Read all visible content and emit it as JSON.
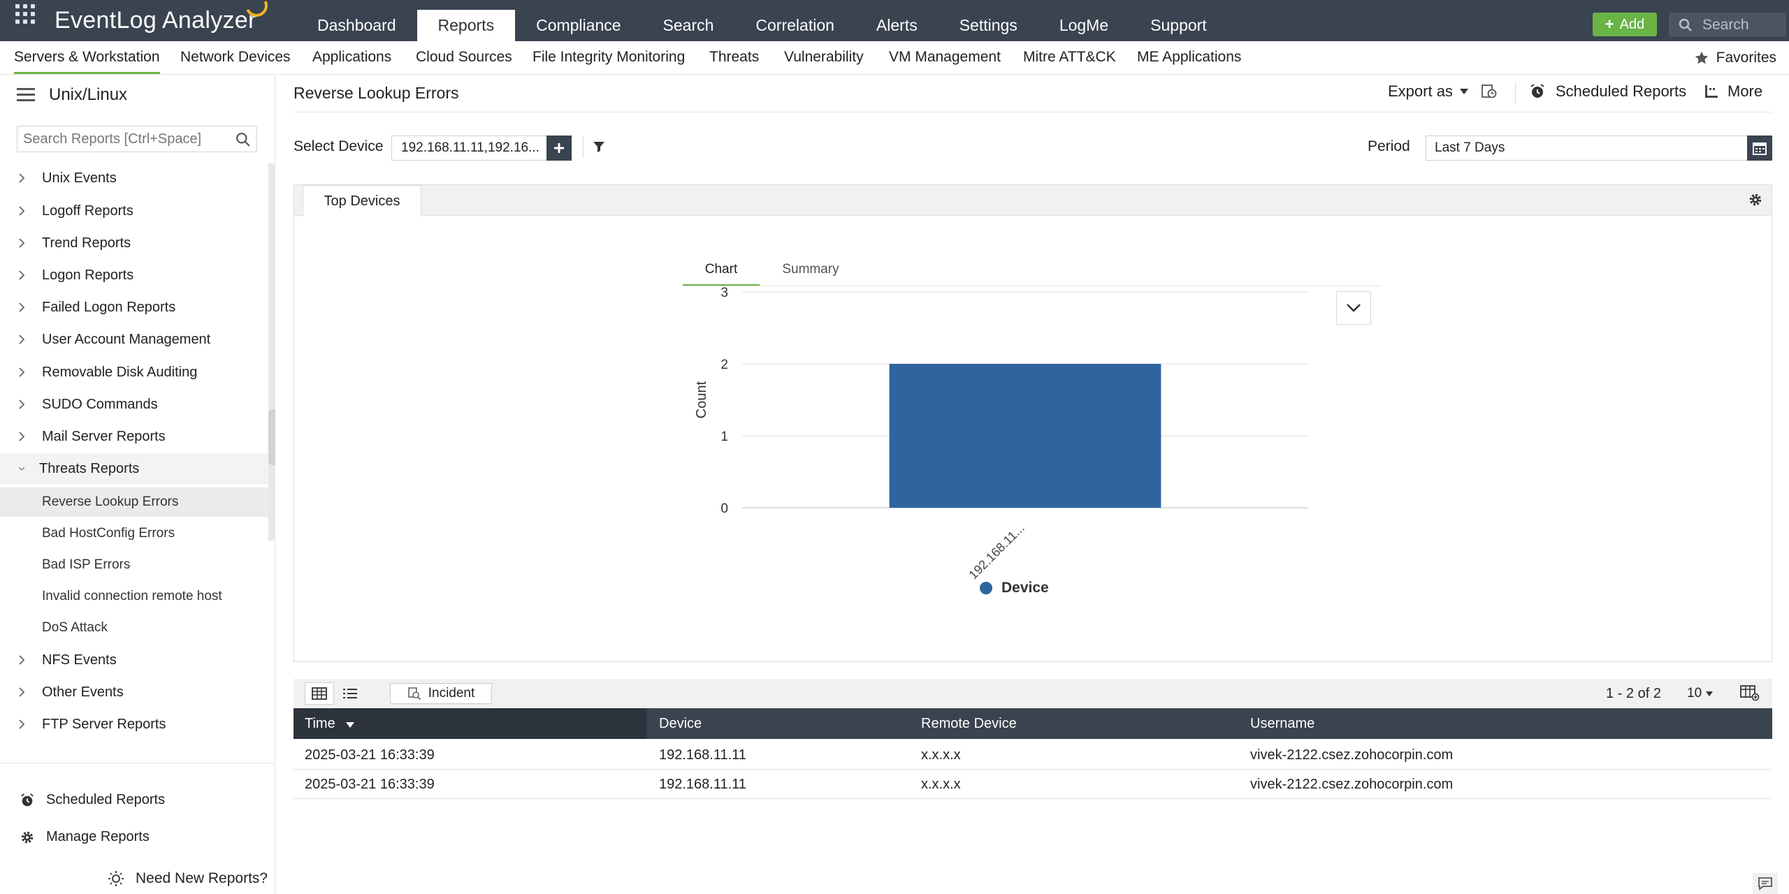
{
  "app": {
    "name": "EventLog Analyzer"
  },
  "main_nav": [
    "Dashboard",
    "Reports",
    "Compliance",
    "Search",
    "Correlation",
    "Alerts",
    "Settings",
    "LogMe",
    "Support"
  ],
  "main_nav_active": "Reports",
  "top_actions": {
    "add_label": "Add",
    "search_placeholder": "Search"
  },
  "sub_nav": [
    "Servers & Workstation",
    "Network Devices",
    "Applications",
    "Cloud Sources",
    "File Integrity Monitoring",
    "Threats",
    "Vulnerability",
    "VM Management",
    "Mitre ATT&CK",
    "ME Applications"
  ],
  "sub_nav_active": "Servers & Workstation",
  "favorites_label": "Favorites",
  "sidebar": {
    "title": "Unix/Linux",
    "search_placeholder": "Search Reports [Ctrl+Space]",
    "groups": [
      {
        "label": "Unix Events"
      },
      {
        "label": "Logoff Reports"
      },
      {
        "label": "Trend Reports"
      },
      {
        "label": "Logon Reports"
      },
      {
        "label": "Failed Logon Reports"
      },
      {
        "label": "User Account Management"
      },
      {
        "label": "Removable Disk Auditing"
      },
      {
        "label": "SUDO Commands"
      },
      {
        "label": "Mail Server Reports"
      },
      {
        "label": "Threats Reports",
        "expanded": true,
        "children": [
          "Reverse Lookup Errors",
          "Bad HostConfig Errors",
          "Bad ISP Errors",
          "Invalid connection remote host",
          "DoS Attack"
        ],
        "selected": "Reverse Lookup Errors"
      },
      {
        "label": "NFS Events"
      },
      {
        "label": "Other Events"
      },
      {
        "label": "FTP Server Reports"
      }
    ],
    "footer": {
      "scheduled_reports": "Scheduled Reports",
      "manage_reports": "Manage Reports",
      "need_new_reports": "Need New Reports?"
    }
  },
  "content": {
    "title": "Reverse Lookup Errors",
    "export_label": "Export as",
    "scheduled_reports_label": "Scheduled Reports",
    "more_label": "More",
    "select_device_label": "Select Device",
    "select_device_value": "192.168.11.11,192.16...",
    "period_label": "Period",
    "period_value": "Last 7 Days",
    "panel_tab": "Top Devices",
    "chart_tabs": [
      "Chart",
      "Summary"
    ],
    "chart_tab_active": "Chart"
  },
  "chart_data": {
    "type": "bar",
    "categories": [
      "192.168.11..."
    ],
    "series": [
      {
        "name": "Device",
        "values": [
          2
        ],
        "color": "#2e659f"
      }
    ],
    "ylabel": "Count",
    "xlabel": "",
    "ylim": [
      0,
      3
    ],
    "yticks": [
      0,
      1,
      2,
      3
    ],
    "grid": true,
    "legend": "bottom"
  },
  "table": {
    "incident_label": "Incident",
    "pagination": "1 - 2 of 2",
    "per_page": "10",
    "columns": [
      "Time",
      "Device",
      "Remote Device",
      "Username"
    ],
    "sorted_column": "Time",
    "rows": [
      [
        "2025-03-21 16:33:39",
        "192.168.11.11",
        "x.x.x.x",
        "vivek-2122.csez.zohocorpin.com"
      ],
      [
        "2025-03-21 16:33:39",
        "192.168.11.11",
        "x.x.x.x",
        "vivek-2122.csez.zohocorpin.com"
      ]
    ]
  },
  "colors": {
    "topbar": "#3a4350",
    "accent_green": "#6ab345",
    "bar": "#2e659f",
    "logo_arc": "#f2b51c"
  }
}
